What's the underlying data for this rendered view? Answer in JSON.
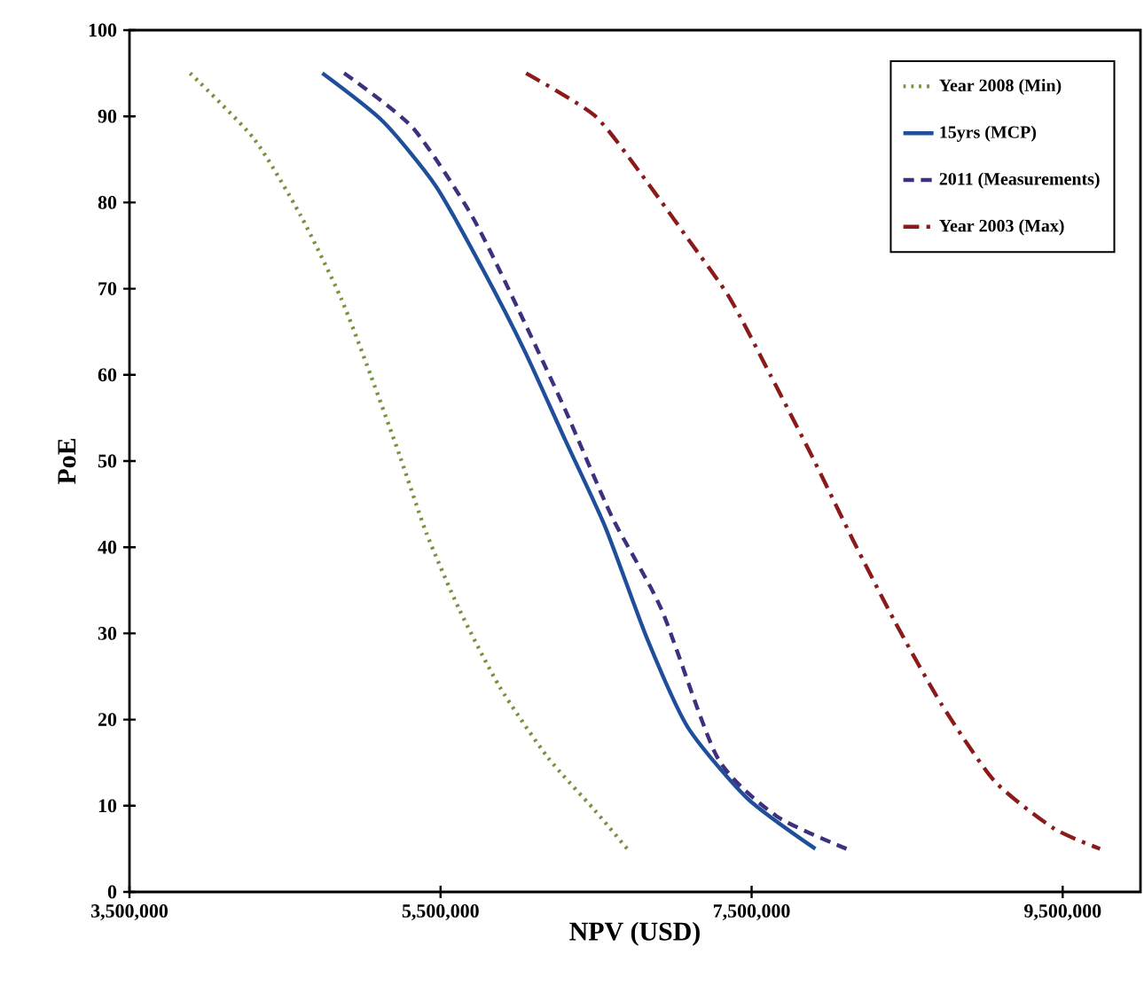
{
  "chart_data": {
    "type": "line",
    "xlabel": "NPV (USD)",
    "ylabel": "PoE",
    "xlim": [
      3500000,
      10000000
    ],
    "ylim": [
      0,
      100
    ],
    "xticks": [
      {
        "value": 3500000,
        "label": "3,500,000"
      },
      {
        "value": 5500000,
        "label": "5,500,000"
      },
      {
        "value": 7500000,
        "label": "7,500,000"
      },
      {
        "value": 9500000,
        "label": "9,500,000"
      }
    ],
    "yticks": [
      0,
      10,
      20,
      30,
      40,
      50,
      60,
      70,
      80,
      90,
      100
    ],
    "legend": "top right",
    "grid": false,
    "series": [
      {
        "name": "Year 2008 (Min)",
        "color": "#77933c",
        "line_style": "dotted",
        "x": [
          3890000,
          4300000,
          4600000,
          4860000,
          5050000,
          5240000,
          5410000,
          5620000,
          5880000,
          6190000,
          6490000,
          6700000
        ],
        "values": [
          95,
          87.4,
          78.5,
          68.9,
          60,
          50.5,
          41.6,
          32.8,
          23.8,
          15.6,
          9.5,
          5
        ]
      },
      {
        "name": "15yrs (MCP)",
        "color": "#1f4e9a",
        "line_style": "solid",
        "x": [
          4740000,
          5130000,
          5470000,
          5770000,
          6040000,
          6300000,
          6560000,
          6830000,
          7090000,
          7470000,
          7910000
        ],
        "values": [
          95,
          89.4,
          81.9,
          72.3,
          62.8,
          52.5,
          42.3,
          29.3,
          19.1,
          10.9,
          5
        ]
      },
      {
        "name": "2011 (Measurements)",
        "color": "#3f2f7f",
        "line_style": "dashed",
        "x": [
          4880000,
          5320000,
          5700000,
          6000000,
          6300000,
          6600000,
          6920000,
          7280000,
          7660000,
          8110000
        ],
        "values": [
          95,
          88.7,
          78.5,
          67.6,
          56,
          43.6,
          32.8,
          15.6,
          8.8,
          5
        ]
      },
      {
        "name": "Year 2003 (Max)",
        "color": "#8b1a1a",
        "line_style": "dashdot",
        "x": [
          6050000,
          6490000,
          6790000,
          7090000,
          7360000,
          7620000,
          7890000,
          8150000,
          8420000,
          8720000,
          9060000,
          9440000,
          9740000
        ],
        "values": [
          95,
          90.1,
          83.3,
          75.8,
          68.9,
          60,
          50.5,
          40.9,
          31.4,
          21.8,
          12.9,
          7.4,
          5
        ]
      }
    ]
  }
}
